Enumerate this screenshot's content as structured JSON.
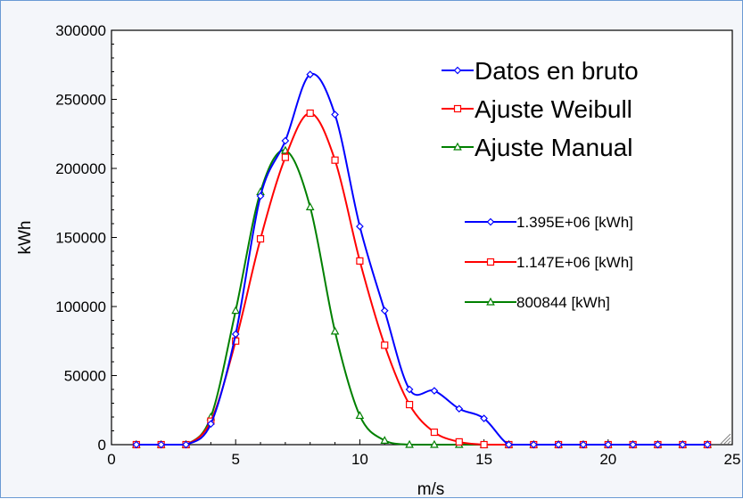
{
  "chart_data": {
    "type": "line",
    "title": "",
    "xlabel": "m/s",
    "ylabel": "kWh",
    "xlim": [
      0,
      25
    ],
    "ylim": [
      0,
      300000
    ],
    "x_ticks": [
      "0",
      "5",
      "10",
      "15",
      "20",
      "25"
    ],
    "y_ticks": [
      "0",
      "50000",
      "100000",
      "150000",
      "200000",
      "250000",
      "300000"
    ],
    "grid": false,
    "series": [
      {
        "name": "Datos en bruto",
        "color": "#0000ff",
        "marker": "diamond",
        "x": [
          1,
          2,
          3,
          4,
          5,
          6,
          7,
          8,
          9,
          10,
          11,
          12,
          13,
          14,
          15,
          16,
          17,
          18,
          19,
          20,
          21,
          22,
          23,
          24
        ],
        "y": [
          0,
          0,
          0,
          15000,
          80000,
          180000,
          220000,
          268000,
          239000,
          158000,
          97000,
          40000,
          39000,
          26000,
          19000,
          0,
          0,
          0,
          0,
          0,
          0,
          0,
          0,
          0
        ]
      },
      {
        "name": "Ajuste Weibull",
        "color": "#ff0000",
        "marker": "square",
        "x": [
          1,
          2,
          3,
          4,
          5,
          6,
          7,
          8,
          9,
          10,
          11,
          12,
          13,
          14,
          15,
          16,
          17,
          18,
          19,
          20,
          21,
          22,
          23,
          24
        ],
        "y": [
          0,
          0,
          0,
          17000,
          75000,
          149000,
          208000,
          240000,
          206000,
          133000,
          72000,
          29000,
          9000,
          2000,
          0,
          0,
          0,
          0,
          0,
          0,
          0,
          0,
          0,
          0
        ]
      },
      {
        "name": "Ajuste Manual",
        "color": "#008000",
        "marker": "triangle",
        "x": [
          1,
          2,
          3,
          4,
          5,
          6,
          7,
          8,
          9,
          10,
          11,
          12,
          13,
          14,
          15,
          16,
          17,
          18,
          19,
          20,
          21,
          22,
          23,
          24
        ],
        "y": [
          0,
          0,
          0,
          20000,
          97000,
          183000,
          213000,
          172000,
          82000,
          21000,
          3000,
          0,
          0,
          0,
          0,
          0,
          0,
          0,
          0,
          0,
          0,
          0,
          0,
          0
        ]
      }
    ],
    "legend_top": {
      "placement": "top-right",
      "entries": [
        "Datos en bruto",
        "Ajuste Weibull",
        "Ajuste Manual"
      ]
    },
    "legend_totals": {
      "placement": "middle-right",
      "entries": [
        "1.395E+06 [kWh]",
        "1.147E+06 [kWh]",
        "800844 [kWh]"
      ]
    }
  }
}
